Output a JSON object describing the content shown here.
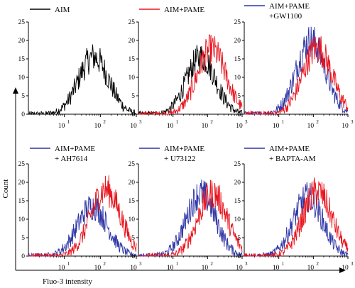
{
  "figure": {
    "xlabel": "Fluo-3 intensity",
    "ylabel": "Count"
  },
  "chart_data": [
    {
      "type": "histogram",
      "xscale": "log",
      "xlim": [
        1,
        1000
      ],
      "ylim": [
        0,
        25
      ],
      "yticks": [
        0,
        5,
        10,
        15,
        20,
        25
      ],
      "xtick_labels": [
        "10",
        "10",
        "10"
      ],
      "xtick_exponents": [
        "1",
        "2",
        "3"
      ],
      "legend": [
        "AIM"
      ],
      "series": [
        {
          "name": "AIM",
          "color": "#000000",
          "peak_x": 65,
          "peak_y": 15.5
        }
      ]
    },
    {
      "type": "histogram",
      "xscale": "log",
      "xlim": [
        1,
        1000
      ],
      "ylim": [
        0,
        25
      ],
      "yticks": [
        0,
        5,
        10,
        15,
        20,
        25
      ],
      "xtick_labels": [
        "10",
        "10",
        "10"
      ],
      "xtick_exponents": [
        "1",
        "2",
        "3"
      ],
      "legend": [
        "AIM+PAME"
      ],
      "series": [
        {
          "name": "AIM",
          "color": "#000000",
          "peak_x": 65,
          "peak_y": 15.5
        },
        {
          "name": "AIM+PAME",
          "color": "#e8141e",
          "peak_x": 130,
          "peak_y": 17.5
        }
      ]
    },
    {
      "type": "histogram",
      "xscale": "log",
      "xlim": [
        1,
        1000
      ],
      "ylim": [
        0,
        25
      ],
      "yticks": [
        0,
        5,
        10,
        15,
        20,
        25
      ],
      "xtick_labels": [
        "10",
        "10",
        "10"
      ],
      "xtick_exponents": [
        "1",
        "2",
        "3"
      ],
      "legend": [
        "AIM+PAME",
        "+GW1100"
      ],
      "series": [
        {
          "name": "AIM+PAME+GW1100",
          "color": "#2e35a6",
          "peak_x": 85,
          "peak_y": 20
        },
        {
          "name": "AIM+PAME",
          "color": "#e8141e",
          "peak_x": 130,
          "peak_y": 18
        }
      ]
    },
    {
      "type": "histogram",
      "xscale": "log",
      "xlim": [
        1,
        1000
      ],
      "ylim": [
        0,
        25
      ],
      "yticks": [
        0,
        5,
        10,
        15,
        20,
        25
      ],
      "xtick_labels": [
        "10",
        "10",
        "10"
      ],
      "xtick_exponents": [
        "1",
        "2",
        "3"
      ],
      "legend": [
        "AIM+PAME",
        "+ AH7614"
      ],
      "series": [
        {
          "name": "AIM+PAME+AH7614",
          "color": "#2e35a6",
          "peak_x": 60,
          "peak_y": 13.5
        },
        {
          "name": "AIM+PAME",
          "color": "#e8141e",
          "peak_x": 140,
          "peak_y": 18
        }
      ]
    },
    {
      "type": "histogram",
      "xscale": "log",
      "xlim": [
        1,
        1000
      ],
      "ylim": [
        0,
        25
      ],
      "yticks": [
        0,
        5,
        10,
        15,
        20,
        25
      ],
      "xtick_labels": [
        "10",
        "10",
        "10"
      ],
      "xtick_exponents": [
        "1",
        "2",
        "3"
      ],
      "legend": [
        "AIM+PAME",
        "+ U73122"
      ],
      "series": [
        {
          "name": "AIM+PAME+U73122",
          "color": "#2e35a6",
          "peak_x": 65,
          "peak_y": 17
        },
        {
          "name": "AIM+PAME",
          "color": "#e8141e",
          "peak_x": 140,
          "peak_y": 17
        }
      ]
    },
    {
      "type": "histogram",
      "xscale": "log",
      "xlim": [
        1,
        1000
      ],
      "ylim": [
        0,
        25
      ],
      "yticks": [
        0,
        5,
        10,
        15,
        20,
        25
      ],
      "xtick_labels": [
        "10",
        "10",
        "10"
      ],
      "xtick_exponents": [
        "1",
        "2",
        "3"
      ],
      "legend": [
        "AIM+PAME",
        "+ BAPTA-AM"
      ],
      "series": [
        {
          "name": "AIM+PAME+BAPTA-AM",
          "color": "#2e35a6",
          "peak_x": 70,
          "peak_y": 16
        },
        {
          "name": "AIM+PAME",
          "color": "#e8141e",
          "peak_x": 130,
          "peak_y": 17.5
        }
      ]
    }
  ]
}
